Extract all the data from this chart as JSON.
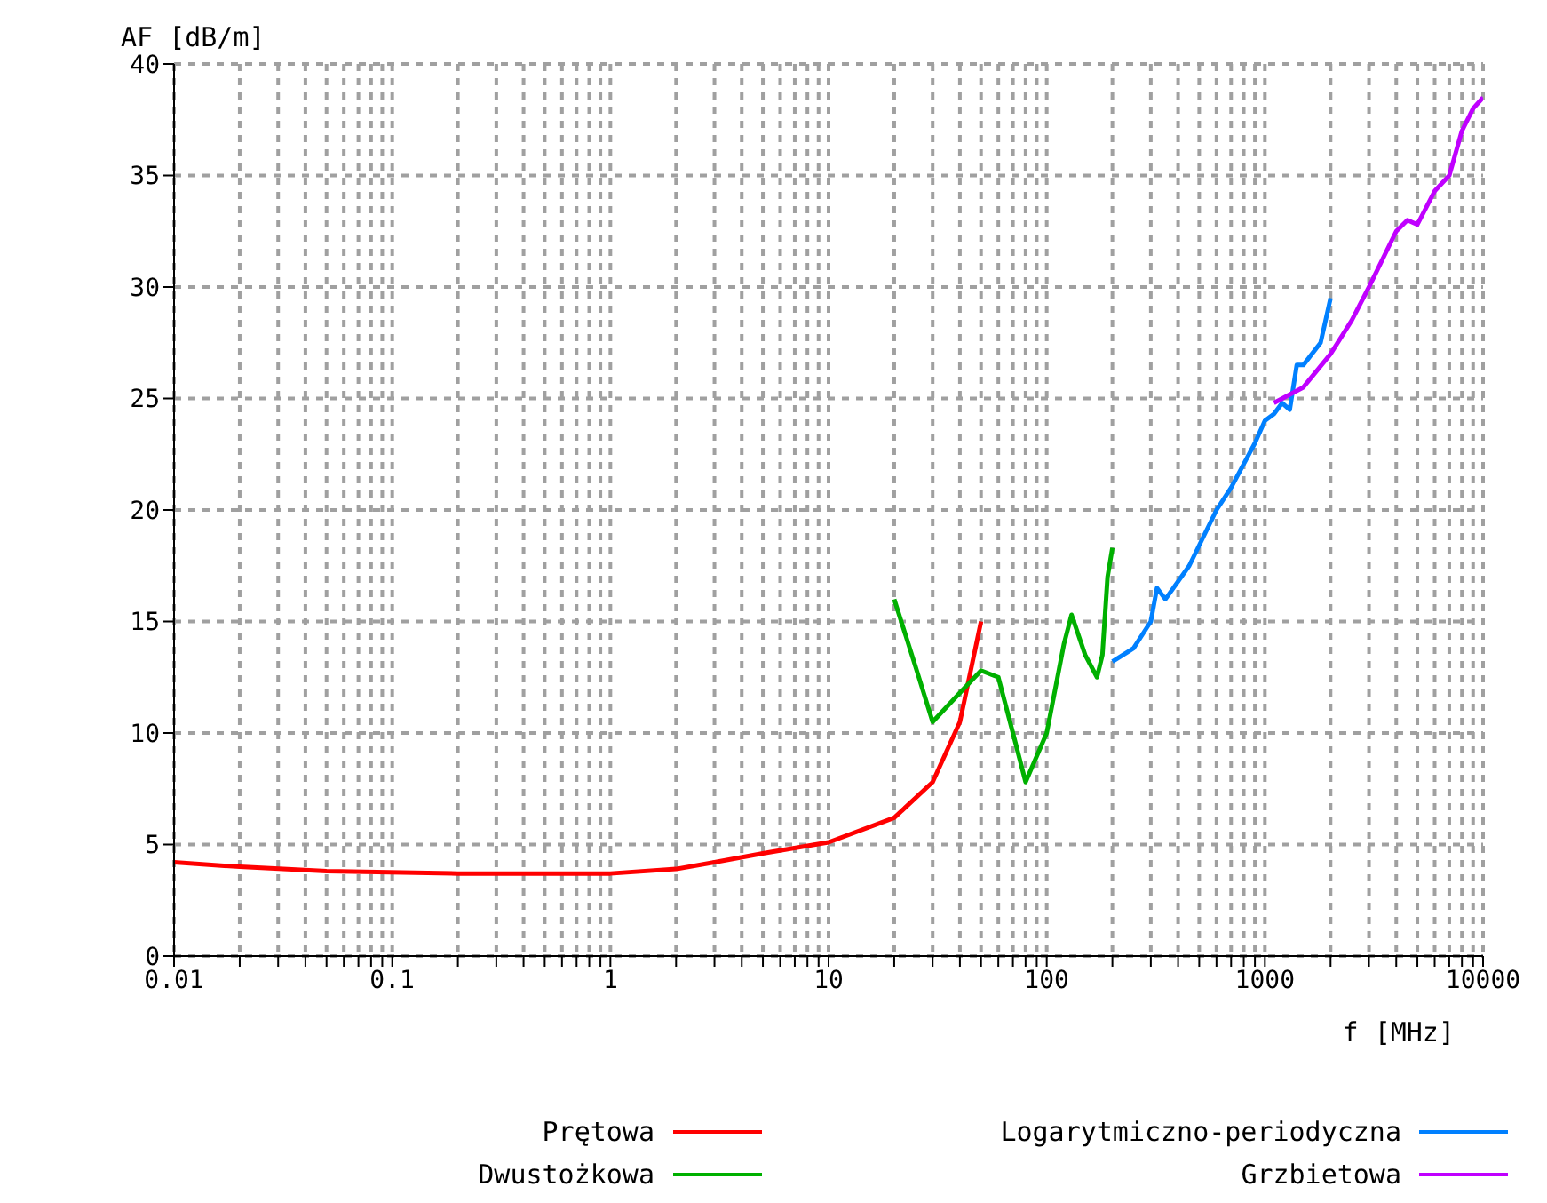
{
  "chart_data": {
    "type": "line",
    "xlabel": "f [MHz]",
    "ylabel": "AF [dB/m]",
    "log": "x",
    "grid": true,
    "legend": "bottom",
    "line_style": "solid",
    "marker": "none",
    "xlim": [
      0.01,
      10000
    ],
    "ylim": [
      0,
      40
    ],
    "yticks": [
      0,
      5,
      10,
      15,
      20,
      25,
      30,
      35,
      40
    ],
    "xticks": [
      0.01,
      {
        "value": 0.02,
        "label": null
      },
      {
        "value": 0.03,
        "label": null
      },
      {
        "value": 0.04,
        "label": null
      },
      {
        "value": 0.05,
        "label": null
      },
      {
        "value": 0.06,
        "label": null
      },
      {
        "value": 0.07,
        "label": null
      },
      {
        "value": 0.08,
        "label": null
      },
      {
        "value": 0.09,
        "label": null
      },
      0.1,
      {
        "value": 0.2,
        "label": null
      },
      {
        "value": 0.3,
        "label": null
      },
      {
        "value": 0.4,
        "label": null
      },
      {
        "value": 0.5,
        "label": null
      },
      {
        "value": 0.6,
        "label": null
      },
      {
        "value": 0.7,
        "label": null
      },
      {
        "value": 0.8,
        "label": null
      },
      {
        "value": 0.9,
        "label": null
      },
      1,
      {
        "value": 2,
        "label": null
      },
      {
        "value": 3,
        "label": null
      },
      {
        "value": 4,
        "label": null
      },
      {
        "value": 5,
        "label": null
      },
      {
        "value": 6,
        "label": null
      },
      {
        "value": 7,
        "label": null
      },
      {
        "value": 8,
        "label": null
      },
      {
        "value": 9,
        "label": null
      },
      10,
      {
        "value": 20,
        "label": null
      },
      {
        "value": 30,
        "label": null
      },
      {
        "value": 40,
        "label": null
      },
      {
        "value": 50,
        "label": null
      },
      {
        "value": 60,
        "label": null
      },
      {
        "value": 70,
        "label": null
      },
      {
        "value": 80,
        "label": null
      },
      {
        "value": 90,
        "label": null
      },
      100,
      {
        "value": 200,
        "label": null
      },
      {
        "value": 300,
        "label": null
      },
      {
        "value": 400,
        "label": null
      },
      {
        "value": 500,
        "label": null
      },
      {
        "value": 600,
        "label": null
      },
      {
        "value": 700,
        "label": null
      },
      {
        "value": 800,
        "label": null
      },
      {
        "value": 900,
        "label": null
      },
      1000,
      {
        "value": 2000,
        "label": null
      },
      {
        "value": 3000,
        "label": null
      },
      {
        "value": 4000,
        "label": null
      },
      {
        "value": 5000,
        "label": null
      },
      {
        "value": 6000,
        "label": null
      },
      {
        "value": 7000,
        "label": null
      },
      {
        "value": 8000,
        "label": null
      },
      {
        "value": 9000,
        "label": null
      },
      10000
    ],
    "series": [
      {
        "name": "Prętowa",
        "color": "#ff0000",
        "x": [
          0.01,
          0.02,
          0.05,
          0.2,
          1,
          2,
          3,
          5,
          10,
          20,
          30,
          40,
          50
        ],
        "values": [
          4.2,
          4.0,
          3.8,
          3.7,
          3.7,
          3.9,
          4.2,
          4.6,
          5.1,
          6.2,
          7.8,
          10.5,
          15.0
        ]
      },
      {
        "name": "Dwustożkowa",
        "color": "#00b000",
        "x": [
          20,
          25,
          30,
          40,
          50,
          60,
          70,
          80,
          100,
          120,
          130,
          150,
          170,
          180,
          190,
          200
        ],
        "values": [
          16,
          13,
          10.5,
          11.8,
          12.8,
          12.5,
          10,
          7.8,
          10,
          14,
          15.3,
          13.5,
          12.5,
          13.5,
          17,
          18.3
        ]
      },
      {
        "name": "Logarytmiczno-periodyczna",
        "color": "#0080ff",
        "x": [
          200,
          250,
          300,
          320,
          350,
          450,
          600,
          700,
          900,
          1000,
          1100,
          1200,
          1300,
          1400,
          1500,
          1800,
          2000
        ],
        "values": [
          13.2,
          13.8,
          15,
          16.5,
          16,
          17.5,
          20,
          21,
          23,
          24,
          24.3,
          24.8,
          24.5,
          26.5,
          26.5,
          27.5,
          29.5
        ]
      },
      {
        "name": "Grzbietowa",
        "color": "#c000ff",
        "x": [
          1100,
          1500,
          2000,
          2500,
          3000,
          4000,
          4500,
          5000,
          6000,
          7000,
          8000,
          9000,
          10000
        ],
        "values": [
          24.8,
          25.5,
          27,
          28.5,
          30,
          32.5,
          33,
          32.8,
          34.3,
          35,
          37,
          38,
          38.5
        ]
      }
    ]
  }
}
